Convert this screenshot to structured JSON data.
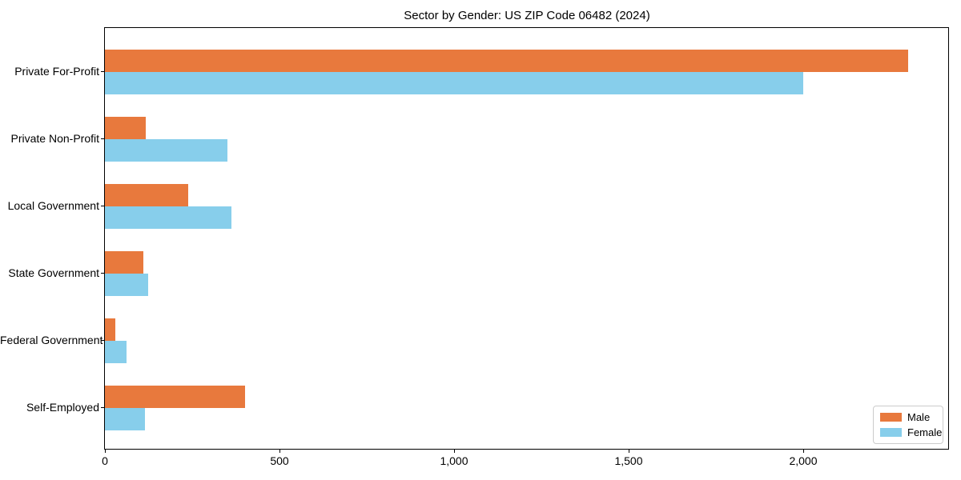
{
  "chart_data": {
    "type": "bar",
    "orientation": "horizontal",
    "title": "Sector by Gender: US ZIP Code 06482 (2024)",
    "categories": [
      "Private For-Profit",
      "Private Non-Profit",
      "Local Government",
      "State Government",
      "Federal Government",
      "Self-Employed"
    ],
    "series": [
      {
        "name": "Male",
        "color": "#e8793d",
        "values": [
          2300,
          117,
          238,
          110,
          29,
          402
        ]
      },
      {
        "name": "Female",
        "color": "#87ceeb",
        "values": [
          2000,
          350,
          362,
          124,
          63,
          114
        ]
      }
    ],
    "xlabel": "",
    "ylabel": "",
    "xlim": [
      0,
      2415
    ],
    "x_ticks": [
      0,
      500,
      1000,
      1500,
      2000
    ],
    "x_tick_labels": [
      "0",
      "500",
      "1,000",
      "1,500",
      "2,000"
    ],
    "legend": {
      "position": "lower right",
      "entries": [
        "Male",
        "Female"
      ]
    },
    "grid": false,
    "axis_color": "#000000",
    "text_color": "#000000",
    "background": "#ffffff"
  }
}
